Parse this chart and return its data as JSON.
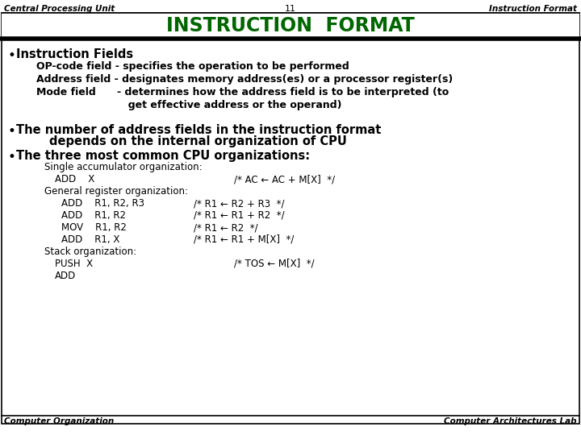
{
  "bg_color": "#ffffff",
  "title_color": "#006600",
  "title_text": "INSTRUCTION  FORMAT",
  "header_left": "Central Processing Unit",
  "header_center": "11",
  "header_right": "Instruction Format",
  "footer_left": "Computer Organization",
  "footer_right": "Computer Architectures Lab",
  "bullet1": "Instruction Fields",
  "indent1_lines": [
    "OP-code field - specifies the operation to be performed",
    "Address field - designates memory address(es) or a processor register(s)",
    "Mode field      - determines how the address field is to be interpreted (to",
    "                          get effective address or the operand)"
  ],
  "bullet2_line1": "The number of address fields in the instruction format",
  "bullet2_line2": "        depends on the internal organization of CPU",
  "bullet3": "The three most common CPU organizations:",
  "org_blocks": [
    {
      "type": "label1",
      "text": "Single accumulator organization:"
    },
    {
      "type": "code1",
      "left": "ADD    X",
      "right": "/* AC ← AC + M[X]  */"
    },
    {
      "type": "label2",
      "text": "General register organization:"
    },
    {
      "type": "code2",
      "left": "ADD    R1, R2, R3",
      "right": "/* R1 ← R2 + R3  */"
    },
    {
      "type": "code2",
      "left": "ADD    R1, R2",
      "right": "/* R1 ← R1 + R2  */"
    },
    {
      "type": "code2",
      "left": "MOV    R1, R2",
      "right": "/* R1 ← R2  */"
    },
    {
      "type": "code2",
      "left": "ADD    R1, X",
      "right": "/* R1 ← R1 + M[X]  */"
    },
    {
      "type": "label1",
      "text": "Stack organization:"
    },
    {
      "type": "code1",
      "left": "PUSH  X",
      "right": "/* TOS ← M[X]  */"
    },
    {
      "type": "code1",
      "left": "ADD",
      "right": ""
    }
  ]
}
